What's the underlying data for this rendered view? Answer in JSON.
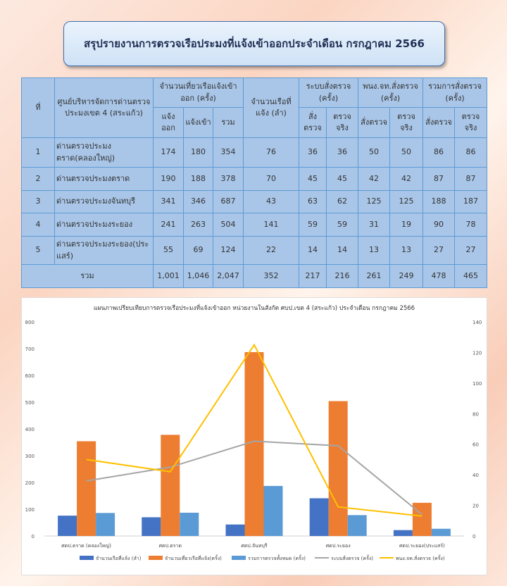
{
  "title": "สรุปรายงานการตรวจเรือประมงที่แจ้งเข้าออกประจำเดือน กรกฎาคม 2566",
  "table": {
    "h_no": "ที่",
    "h_center": "ศูนย์บริหารจัดการด่านตรวจประมงเขต 4 (สระแก้ว)",
    "h_trips": "จำนวนเที่ยวเรือแจ้งเข้าออก (ครั้ง)",
    "h_boats": "จำนวนเรือที่แจ้ง (ลำ)",
    "h_system": "ระบบสั่งตรวจ (ครั้ง)",
    "h_officer": "พนง.จท.สั่งตรวจ (ครั้ง)",
    "h_total": "รวมการสั่งตรวจ (ครั้ง)",
    "s_out": "แจ้งออก",
    "s_in": "แจ้งเข้า",
    "s_sum": "รวม",
    "s_order": "สั่งตรวจ",
    "s_actual": "ตรวจจริง",
    "s_actual2": "ตรวจ จริง",
    "rows": [
      [
        "1",
        "ด่านตรวจประมงตราด(คลองใหญ่)",
        "174",
        "180",
        "354",
        "76",
        "36",
        "36",
        "50",
        "50",
        "86",
        "86"
      ],
      [
        "2",
        "ด่านตรวจประมงตราด",
        "190",
        "188",
        "378",
        "70",
        "45",
        "45",
        "42",
        "42",
        "87",
        "87"
      ],
      [
        "3",
        "ด่านตรวจประมงจันทบุรี",
        "341",
        "346",
        "687",
        "43",
        "63",
        "62",
        "125",
        "125",
        "188",
        "187"
      ],
      [
        "4",
        "ด่านตรวจประมงระยอง",
        "241",
        "263",
        "504",
        "141",
        "59",
        "59",
        "31",
        "19",
        "90",
        "78"
      ],
      [
        "5",
        "ด่านตรวจประมงระยอง(ประแสร์)",
        "55",
        "69",
        "124",
        "22",
        "14",
        "14",
        "13",
        "13",
        "27",
        "27"
      ]
    ],
    "total": [
      "รวม",
      "1,001",
      "1,046",
      "2,047",
      "352",
      "217",
      "216",
      "261",
      "249",
      "478",
      "465"
    ]
  },
  "chart_data": {
    "type": "bar+line",
    "title": "แผนภาพเปรียบเทียบการตรวจเรือประมงที่แจ้งเข้าออก หน่วยงานในสังกัด ศบป.เขต 4 (สระแก้ว) ประจำเดือน กรกฎาคม 2566",
    "categories": [
      "ศตป.ตราด (คลองใหญ่)",
      "ศตป.ตราด",
      "ศตป.จันทบุรี",
      "ศตป.ระยอง",
      "ศตป.ระยอง(ประแสร์)"
    ],
    "ylim": [
      0,
      800
    ],
    "y_ticks": [
      0,
      100,
      200,
      300,
      400,
      500,
      600,
      700,
      800
    ],
    "y2lim": [
      0,
      140
    ],
    "y2_ticks": [
      0,
      20,
      40,
      60,
      80,
      100,
      120,
      140
    ],
    "legend": "bottom",
    "grid": false,
    "series": [
      {
        "name": "จำนวนเรือที่แจ้ง (ลำ)",
        "type": "bar",
        "axis": "left",
        "color": "#4472c4",
        "values": [
          76,
          70,
          43,
          141,
          22
        ]
      },
      {
        "name": "จำนวนเที่ยวเรือที่แจ้ง(ครั้ง)",
        "type": "bar",
        "axis": "left",
        "color": "#ed7d31",
        "values": [
          354,
          378,
          687,
          504,
          124
        ]
      },
      {
        "name": "รวมการตรวจทั้งหมด (ครั้ง)",
        "type": "bar",
        "axis": "left",
        "color": "#5b9bd5",
        "values": [
          86,
          87,
          187,
          78,
          27
        ]
      },
      {
        "name": "ระบบสั่งตรวจ (ครั้ง)",
        "type": "line",
        "axis": "right",
        "color": "#a5a5a5",
        "values": [
          36,
          45,
          62,
          59,
          14
        ]
      },
      {
        "name": "พนง.จท.สั่งตรวจ (ครั้ง)",
        "type": "line",
        "axis": "right",
        "color": "#ffc000",
        "values": [
          50,
          42,
          125,
          19,
          13
        ]
      }
    ]
  }
}
